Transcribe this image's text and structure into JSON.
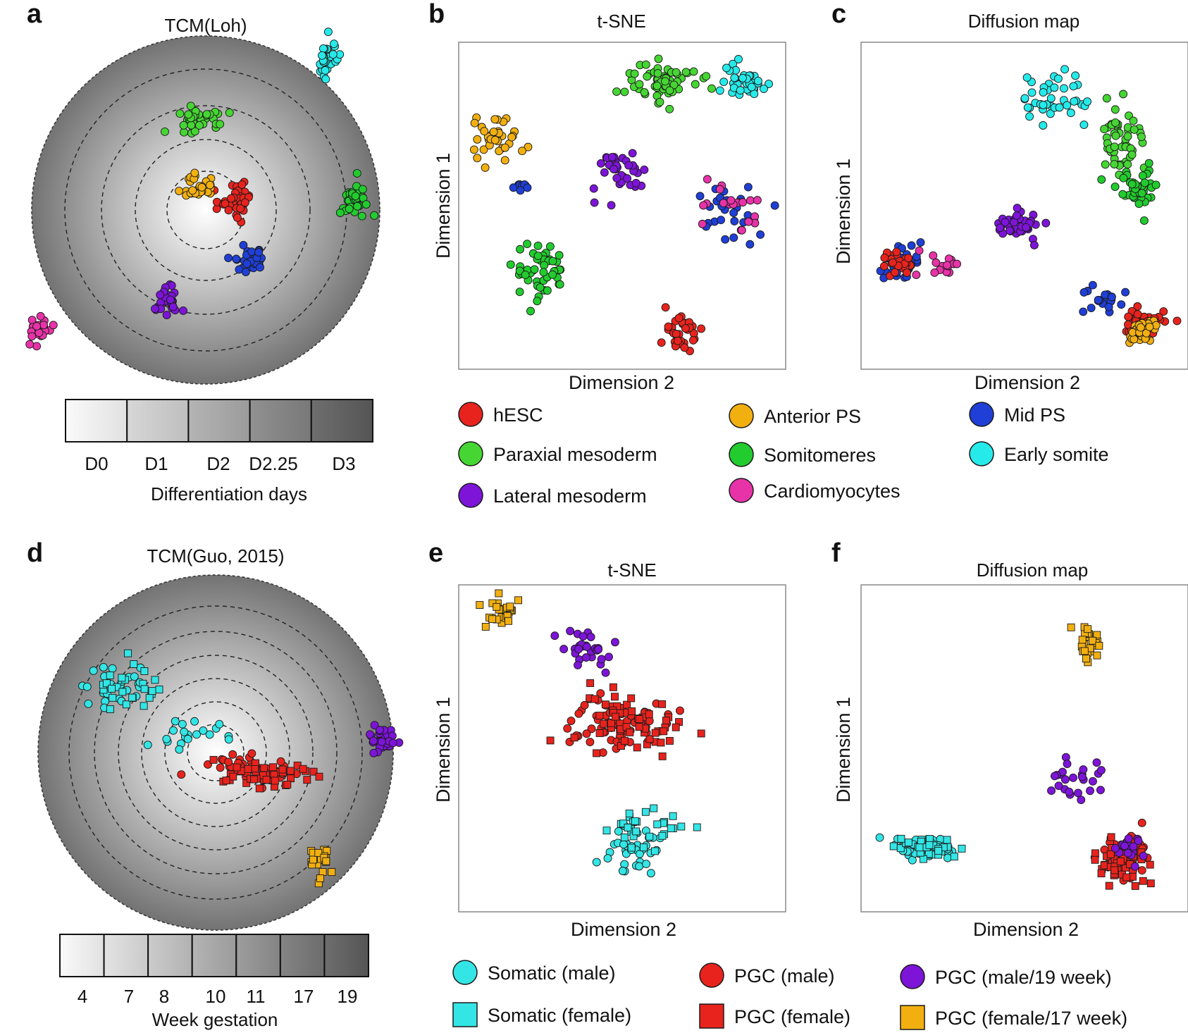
{
  "figure": {
    "top_legend": {
      "items": [
        {
          "label": "hESC",
          "color": "#e8231d",
          "shape": "circle"
        },
        {
          "label": "Paraxial mesoderm",
          "color": "#46d633",
          "shape": "circle"
        },
        {
          "label": "Lateral mesoderm",
          "color": "#7d14d8",
          "shape": "circle"
        },
        {
          "label": "Anterior PS",
          "color": "#f2b010",
          "shape": "circle"
        },
        {
          "label": "Somitomeres",
          "color": "#22cc2e",
          "shape": "circle"
        },
        {
          "label": "Cardiomyocytes",
          "color": "#e833a8",
          "shape": "circle"
        },
        {
          "label": "Mid PS",
          "color": "#1f3fd6",
          "shape": "circle"
        },
        {
          "label": "Early somite",
          "color": "#26eaea",
          "shape": "circle"
        }
      ]
    },
    "bottom_legend": {
      "items": [
        {
          "label": "Somatic (male)",
          "color": "#33e5e5",
          "shape": "circle"
        },
        {
          "label": "Somatic (female)",
          "color": "#33e5e5",
          "shape": "square"
        },
        {
          "label": "PGC (male)",
          "color": "#e8231d",
          "shape": "circle"
        },
        {
          "label": "PGC (female)",
          "color": "#e8231d",
          "shape": "square"
        },
        {
          "label": "PGC (male/19 week)",
          "color": "#7d14d8",
          "shape": "circle"
        },
        {
          "label": "PGC (female/17 week)",
          "color": "#f2b010",
          "shape": "square"
        }
      ]
    }
  },
  "chart_data": [
    {
      "panel": "a",
      "type": "scatter",
      "title": "TCM(Loh)",
      "radial_scale": {
        "label": "Differentiation days",
        "ticks": [
          "D0",
          "D1",
          "D2",
          "D2.25",
          "D3"
        ]
      },
      "clusters": [
        {
          "series": "hESC",
          "color": "#e8231d",
          "center": [
            0.17,
            0.05
          ],
          "spread": [
            0.08,
            0.07
          ],
          "n": 40,
          "shape": "circle"
        },
        {
          "series": "Anterior PS",
          "color": "#f2b010",
          "center": [
            -0.04,
            0.13
          ],
          "spread": [
            0.07,
            0.05
          ],
          "n": 30,
          "shape": "circle"
        },
        {
          "series": "Mid PS",
          "color": "#1f3fd6",
          "center": [
            0.23,
            -0.27
          ],
          "spread": [
            0.07,
            0.05
          ],
          "n": 30,
          "shape": "circle"
        },
        {
          "series": "Lateral mesoderm",
          "color": "#7d14d8",
          "center": [
            -0.22,
            -0.52
          ],
          "spread": [
            0.06,
            0.06
          ],
          "n": 30,
          "shape": "circle"
        },
        {
          "series": "Paraxial mesoderm",
          "color": "#46d633",
          "center": [
            -0.05,
            0.52
          ],
          "spread": [
            0.1,
            0.05
          ],
          "n": 40,
          "shape": "circle"
        },
        {
          "series": "Somitomeres",
          "color": "#22cc2e",
          "center": [
            0.86,
            0.07
          ],
          "spread": [
            0.06,
            0.07
          ],
          "n": 40,
          "shape": "circle"
        },
        {
          "series": "Early somite",
          "color": "#26eaea",
          "center": [
            0.71,
            0.86
          ],
          "spread": [
            0.05,
            0.07
          ],
          "n": 30,
          "shape": "circle"
        },
        {
          "series": "Cardiomyocytes",
          "color": "#e833a8",
          "center": [
            -0.96,
            -0.69
          ],
          "spread": [
            0.07,
            0.05
          ],
          "n": 30,
          "shape": "circle"
        }
      ]
    },
    {
      "panel": "b",
      "type": "scatter",
      "title": "t-SNE",
      "xlabel": "Dimension 2",
      "ylabel": "Dimension 1",
      "xlim": [
        0,
        100
      ],
      "ylim": [
        0,
        100
      ],
      "clusters": [
        {
          "series": "Paraxial mesoderm",
          "color": "#46d633",
          "center": [
            63,
            90
          ],
          "spread": [
            8,
            5
          ],
          "n": 65,
          "shape": "circle"
        },
        {
          "series": "Early somite",
          "color": "#26eaea",
          "center": [
            89,
            91
          ],
          "spread": [
            6,
            4
          ],
          "n": 35,
          "shape": "circle"
        },
        {
          "series": "Anterior PS",
          "color": "#f2b010",
          "center": [
            10,
            72
          ],
          "spread": [
            5,
            5
          ],
          "n": 40,
          "shape": "circle"
        },
        {
          "series": "Mid PS",
          "color": "#1f3fd6",
          "center": [
            18,
            56
          ],
          "spread": [
            3,
            2
          ],
          "n": 12,
          "shape": "circle"
        },
        {
          "series": "Lateral mesoderm",
          "color": "#7d14d8",
          "center": [
            49,
            61
          ],
          "spread": [
            6,
            5
          ],
          "n": 35,
          "shape": "circle"
        },
        {
          "series": "Somitomeres",
          "color": "#22cc2e",
          "center": [
            24,
            29
          ],
          "spread": [
            6,
            6
          ],
          "n": 50,
          "shape": "circle"
        },
        {
          "series": "Mid PS",
          "color": "#1f3fd6",
          "center": [
            84,
            48
          ],
          "spread": [
            8,
            7
          ],
          "n": 30,
          "shape": "circle"
        },
        {
          "series": "Cardiomyocytes",
          "color": "#e833a8",
          "center": [
            84,
            48
          ],
          "spread": [
            8,
            7
          ],
          "n": 20,
          "shape": "circle"
        },
        {
          "series": "hESC",
          "color": "#e8231d",
          "center": [
            68,
            9
          ],
          "spread": [
            5,
            5
          ],
          "n": 35,
          "shape": "circle"
        }
      ]
    },
    {
      "panel": "c",
      "type": "scatter",
      "title": "Diffusion map",
      "xlabel": "Dimension 2",
      "ylabel": "Dimension 1",
      "xlim": [
        0,
        100
      ],
      "ylim": [
        0,
        100
      ],
      "clusters": [
        {
          "series": "Early somite",
          "color": "#26eaea",
          "center": [
            60,
            84
          ],
          "spread": [
            8,
            6
          ],
          "n": 40,
          "shape": "circle"
        },
        {
          "series": "Paraxial mesoderm",
          "color": "#46d633",
          "center": [
            80,
            72
          ],
          "spread": [
            5,
            8
          ],
          "n": 50,
          "shape": "circle"
        },
        {
          "series": "Somitomeres",
          "color": "#22cc2e",
          "center": [
            87,
            56
          ],
          "spread": [
            5,
            5
          ],
          "n": 40,
          "shape": "circle"
        },
        {
          "series": "Lateral mesoderm",
          "color": "#7d14d8",
          "center": [
            48,
            44
          ],
          "spread": [
            5,
            3
          ],
          "n": 40,
          "shape": "circle"
        },
        {
          "series": "Mid PS",
          "color": "#1f3fd6",
          "center": [
            10,
            31
          ],
          "spread": [
            5,
            4
          ],
          "n": 30,
          "shape": "circle"
        },
        {
          "series": "hESC",
          "color": "#e8231d",
          "center": [
            9,
            32
          ],
          "spread": [
            4,
            3
          ],
          "n": 25,
          "shape": "circle"
        },
        {
          "series": "Cardiomyocytes",
          "color": "#e833a8",
          "center": [
            22,
            32
          ],
          "spread": [
            4,
            4
          ],
          "n": 15,
          "shape": "circle"
        },
        {
          "series": "Mid PS",
          "color": "#1f3fd6",
          "center": [
            76,
            20
          ],
          "spread": [
            5,
            3
          ],
          "n": 20,
          "shape": "circle"
        },
        {
          "series": "hESC",
          "color": "#e8231d",
          "center": [
            88,
            13
          ],
          "spread": [
            5,
            4
          ],
          "n": 35,
          "shape": "circle"
        },
        {
          "series": "Anterior PS",
          "color": "#f2b010",
          "center": [
            88,
            10
          ],
          "spread": [
            4,
            3
          ],
          "n": 30,
          "shape": "circle"
        }
      ]
    },
    {
      "panel": "d",
      "type": "scatter",
      "title": "TCM(Guo, 2015)",
      "radial_scale": {
        "label": "Week gestation",
        "ticks": [
          "4",
          "7",
          "8",
          "10",
          "11",
          "17",
          "19"
        ]
      },
      "clusters": [
        {
          "series": "Somatic (male)",
          "color": "#33e5e5",
          "center": [
            -0.57,
            0.38
          ],
          "spread": [
            0.14,
            0.08
          ],
          "n": 25,
          "shape": "circle"
        },
        {
          "series": "Somatic (female)",
          "color": "#33e5e5",
          "center": [
            -0.5,
            0.37
          ],
          "spread": [
            0.16,
            0.09
          ],
          "n": 25,
          "shape": "square"
        },
        {
          "series": "Somatic (male)",
          "color": "#33e5e5",
          "center": [
            -0.15,
            0.11
          ],
          "spread": [
            0.12,
            0.07
          ],
          "n": 20,
          "shape": "circle"
        },
        {
          "series": "PGC (male)",
          "color": "#e8231d",
          "center": [
            0.18,
            -0.09
          ],
          "spread": [
            0.18,
            0.05
          ],
          "n": 45,
          "shape": "circle"
        },
        {
          "series": "PGC (female)",
          "color": "#e8231d",
          "center": [
            0.25,
            -0.12
          ],
          "spread": [
            0.2,
            0.05
          ],
          "n": 45,
          "shape": "square"
        },
        {
          "series": "PGC (male/19 week)",
          "color": "#7d14d8",
          "center": [
            0.93,
            0.07
          ],
          "spread": [
            0.06,
            0.06
          ],
          "n": 30,
          "shape": "circle"
        },
        {
          "series": "PGC (female/17 week)",
          "color": "#f2b010",
          "center": [
            0.6,
            -0.62
          ],
          "spread": [
            0.05,
            0.06
          ],
          "n": 25,
          "shape": "square"
        }
      ]
    },
    {
      "panel": "e",
      "type": "scatter",
      "title": "t-SNE",
      "xlabel": "Dimension 2",
      "ylabel": "Dimension 1",
      "xlim": [
        0,
        100
      ],
      "ylim": [
        0,
        100
      ],
      "clusters": [
        {
          "series": "PGC (female/17 week)",
          "color": "#f2b010",
          "center": [
            10,
            94
          ],
          "spread": [
            5,
            3
          ],
          "n": 25,
          "shape": "square"
        },
        {
          "series": "PGC (male/19 week)",
          "color": "#7d14d8",
          "center": [
            38,
            81
          ],
          "spread": [
            8,
            5
          ],
          "n": 30,
          "shape": "circle"
        },
        {
          "series": "PGC (male)",
          "color": "#e8231d",
          "center": [
            48,
            58
          ],
          "spread": [
            10,
            7
          ],
          "n": 60,
          "shape": "circle"
        },
        {
          "series": "PGC (female)",
          "color": "#e8231d",
          "center": [
            53,
            57
          ],
          "spread": [
            14,
            8
          ],
          "n": 55,
          "shape": "square"
        },
        {
          "series": "Somatic (male)",
          "color": "#33e5e5",
          "center": [
            53,
            18
          ],
          "spread": [
            6,
            6
          ],
          "n": 40,
          "shape": "circle"
        },
        {
          "series": "Somatic (female)",
          "color": "#33e5e5",
          "center": [
            58,
            24
          ],
          "spread": [
            8,
            6
          ],
          "n": 30,
          "shape": "square"
        }
      ]
    },
    {
      "panel": "f",
      "type": "scatter",
      "title": "Diffusion map",
      "xlabel": "Dimension 2",
      "ylabel": "Dimension 1",
      "xlim": [
        0,
        100
      ],
      "ylim": [
        0,
        100
      ],
      "clusters": [
        {
          "series": "PGC (female/17 week)",
          "color": "#f2b010",
          "center": [
            71,
            83
          ],
          "spread": [
            3,
            6
          ],
          "n": 25,
          "shape": "square"
        },
        {
          "series": "PGC (male/19 week)",
          "color": "#7d14d8",
          "center": [
            66,
            40
          ],
          "spread": [
            7,
            5
          ],
          "n": 25,
          "shape": "circle"
        },
        {
          "series": "Somatic (male)",
          "color": "#33e5e5",
          "center": [
            17,
            18
          ],
          "spread": [
            7,
            2
          ],
          "n": 60,
          "shape": "circle"
        },
        {
          "series": "Somatic (female)",
          "color": "#33e5e5",
          "center": [
            20,
            18
          ],
          "spread": [
            8,
            2
          ],
          "n": 35,
          "shape": "square"
        },
        {
          "series": "PGC (male)",
          "color": "#e8231d",
          "center": [
            84,
            15
          ],
          "spread": [
            6,
            5
          ],
          "n": 50,
          "shape": "circle"
        },
        {
          "series": "PGC (female)",
          "color": "#e8231d",
          "center": [
            82,
            13
          ],
          "spread": [
            6,
            5
          ],
          "n": 45,
          "shape": "square"
        },
        {
          "series": "PGC (male/19 week)",
          "color": "#7d14d8",
          "center": [
            84,
            18
          ],
          "spread": [
            3,
            3
          ],
          "n": 15,
          "shape": "circle"
        }
      ]
    }
  ]
}
